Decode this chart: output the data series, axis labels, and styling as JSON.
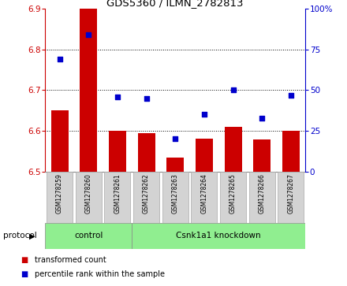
{
  "title": "GDS5360 / ILMN_2782813",
  "samples": [
    "GSM1278259",
    "GSM1278260",
    "GSM1278261",
    "GSM1278262",
    "GSM1278263",
    "GSM1278264",
    "GSM1278265",
    "GSM1278266",
    "GSM1278267"
  ],
  "bar_values": [
    6.65,
    6.9,
    6.6,
    6.595,
    6.535,
    6.58,
    6.61,
    6.578,
    6.6
  ],
  "dot_values": [
    69,
    84,
    46,
    45,
    20,
    35,
    50,
    33,
    47
  ],
  "ylim_left": [
    6.5,
    6.9
  ],
  "ylim_right": [
    0,
    100
  ],
  "yticks_left": [
    6.5,
    6.6,
    6.7,
    6.8,
    6.9
  ],
  "yticks_right": [
    0,
    25,
    50,
    75,
    100
  ],
  "bar_color": "#cc0000",
  "dot_color": "#0000cc",
  "bar_width": 0.6,
  "bg_color": "#ffffff",
  "protocol_groups": [
    {
      "label": "control",
      "start": 0,
      "end": 2
    },
    {
      "label": "Csnk1a1 knockdown",
      "start": 3,
      "end": 8
    }
  ],
  "protocol_label": "protocol",
  "legend_bar_label": "transformed count",
  "legend_dot_label": "percentile rank within the sample",
  "tick_bg_color": "#d3d3d3",
  "tick_bg_border": "#aaaaaa",
  "grid_yticks": [
    6.6,
    6.7,
    6.8
  ],
  "ytick_right_labels": [
    "0",
    "25",
    "50",
    "75",
    "100%"
  ]
}
